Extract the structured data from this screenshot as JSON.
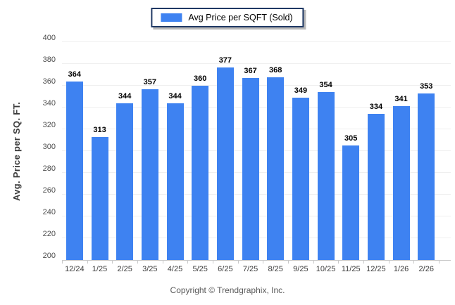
{
  "chart_data": {
    "type": "bar",
    "title": "",
    "legend": [
      "Avg Price per SQFT (Sold)"
    ],
    "legend_position": "top-center",
    "categories": [
      "12/24",
      "1/25",
      "2/25",
      "3/25",
      "4/25",
      "5/25",
      "6/25",
      "7/25",
      "8/25",
      "9/25",
      "10/25",
      "11/25",
      "12/25",
      "1/26",
      "2/26"
    ],
    "values": [
      364,
      313,
      344,
      357,
      344,
      360,
      377,
      367,
      368,
      349,
      354,
      305,
      334,
      341,
      353
    ],
    "xlabel": "",
    "ylabel": "Avg. Price per SQ. FT.",
    "ylim": [
      200,
      400
    ],
    "ytick_step": 20,
    "yticks": [
      200,
      220,
      240,
      260,
      280,
      300,
      320,
      340,
      360,
      380,
      400
    ],
    "grid": true,
    "colors": {
      "bar": "#3e82f1",
      "gridline": "#efefef",
      "axis_line": "#c9c9c9",
      "y_tick_text": "#4d4d4d",
      "x_tick_text": "#3c3c3c",
      "value_label": "#000000",
      "legend_border": "#1f3864",
      "legend_shadow": "#b9b9b9",
      "footer_text": "#595959"
    }
  },
  "footer": {
    "copyright": "Copyright © Trendgraphix, Inc."
  }
}
